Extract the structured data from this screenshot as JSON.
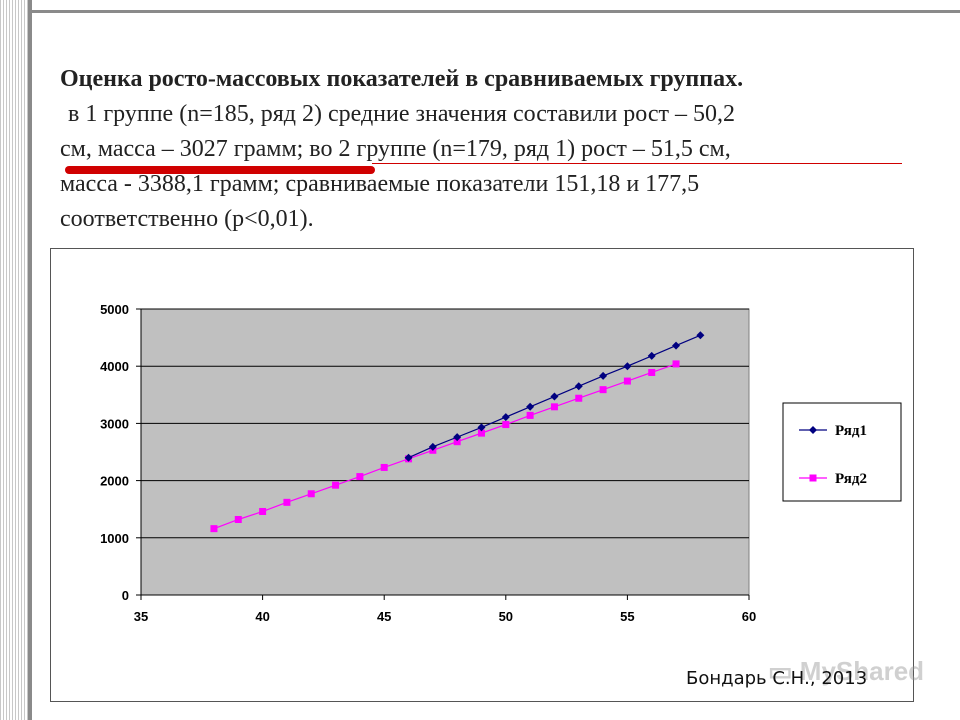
{
  "slide": {
    "title_bold": "Оценка росто-массовых показателей в сравниваемых группах.",
    "line1": "в 1 группе (n=185, ряд 2) средние значения составили рост – 50,2",
    "line2": "см, масса – 3027 грамм; во 2 группе (n=179, ряд 1) рост – 51,5 см,",
    "line3": "масса - 3388,1 грамм; сравниваемые показатели 151,18 и 177,5",
    "line4": "соответственно (р<0,01).",
    "credit": "Бондарь С.Н., 2013"
  },
  "colors": {
    "series1": "#000080",
    "series2": "#ff00ff",
    "plot_bg": "#c0c0c0",
    "accent_red": "#d00000"
  },
  "chart_data": {
    "type": "line",
    "xlim": [
      35,
      60
    ],
    "ylim": [
      0,
      5000
    ],
    "xticks": [
      35,
      40,
      45,
      50,
      55,
      60
    ],
    "yticks": [
      0,
      1000,
      2000,
      3000,
      4000,
      5000
    ],
    "grid": true,
    "legend": "right",
    "series": [
      {
        "name": "Ряд1",
        "marker": "diamond",
        "x": [
          46,
          47,
          48,
          49,
          50,
          51,
          52,
          53,
          54,
          55,
          56,
          57,
          58
        ],
        "y": [
          2400,
          2590,
          2760,
          2930,
          3110,
          3290,
          3470,
          3650,
          3830,
          4000,
          4180,
          4360,
          4540
        ]
      },
      {
        "name": "Ряд2",
        "marker": "square",
        "x": [
          38,
          39,
          40,
          41,
          42,
          43,
          44,
          45,
          46,
          47,
          48,
          49,
          50,
          51,
          52,
          53,
          54,
          55,
          56,
          57
        ],
        "y": [
          1160,
          1320,
          1460,
          1620,
          1770,
          1920,
          2070,
          2230,
          2380,
          2530,
          2680,
          2830,
          2980,
          3140,
          3290,
          3440,
          3590,
          3740,
          3890,
          4040
        ]
      }
    ]
  }
}
